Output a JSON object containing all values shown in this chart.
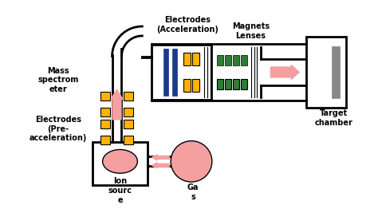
{
  "bg_color": "#ffffff",
  "line_color": "#000000",
  "yellow_color": "#FFB300",
  "blue_color": "#1a3a8a",
  "green_color": "#2e7d32",
  "gray_color": "#888888",
  "arrow_color": "#f4a0a0",
  "labels": {
    "mass_spec": "Mass\nspectrom\neter",
    "electrodes_accel": "Electrodes\n(Acceleration)",
    "magnets_lenses": "Magnets\nLenses",
    "target_chamber": "Target\nchamber",
    "electrodes_pre": "Electrodes\n(Pre-\nacceleration)",
    "ion_source": "Ion\nsourc\ne",
    "gas": "Ga\ns"
  }
}
